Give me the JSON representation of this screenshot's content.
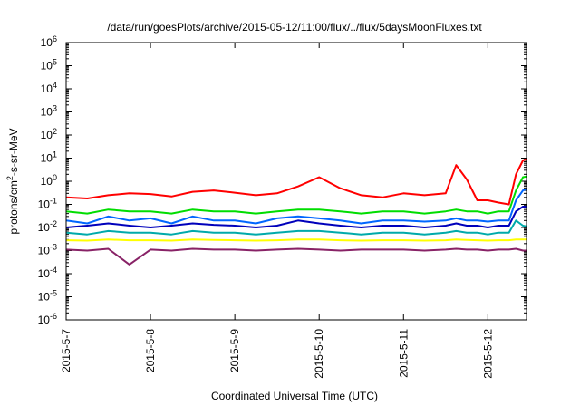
{
  "chart_data": {
    "type": "line",
    "title": "/data/run/goesPlots/archive/2015-05-12/11:00/flux/../flux/5daysMoonFluxes.txt",
    "xlabel": "Coordinated Universal Time (UTC)",
    "ylabel": {
      "base": "protons/cm",
      "exp": "2",
      "rest": "-s-sr-MeV"
    },
    "y_scale": "log",
    "ylim": [
      1e-06,
      1000000.0
    ],
    "y_ticks": [
      {
        "value": 1e-06,
        "base": "10",
        "exp": "-6"
      },
      {
        "value": 1e-05,
        "base": "10",
        "exp": "-5"
      },
      {
        "value": 0.0001,
        "base": "10",
        "exp": "-4"
      },
      {
        "value": 0.001,
        "base": "10",
        "exp": "-3"
      },
      {
        "value": 0.01,
        "base": "10",
        "exp": "-2"
      },
      {
        "value": 0.1,
        "base": "10",
        "exp": "-1"
      },
      {
        "value": 1.0,
        "base": "10",
        "exp": "0"
      },
      {
        "value": 10.0,
        "base": "10",
        "exp": "1"
      },
      {
        "value": 100.0,
        "base": "10",
        "exp": "2"
      },
      {
        "value": 1000.0,
        "base": "10",
        "exp": "3"
      },
      {
        "value": 10000.0,
        "base": "10",
        "exp": "4"
      },
      {
        "value": 100000.0,
        "base": "10",
        "exp": "5"
      },
      {
        "value": 1000000.0,
        "base": "10",
        "exp": "6"
      }
    ],
    "xlim": [
      "2015-05-07",
      "2015-05-12T11:00"
    ],
    "x_ticks": [
      {
        "value": "2015-05-07",
        "label": "2015-5-7"
      },
      {
        "value": "2015-05-08",
        "label": "2015-5-8"
      },
      {
        "value": "2015-05-09",
        "label": "2015-5-9"
      },
      {
        "value": "2015-05-10",
        "label": "2015-5-10"
      },
      {
        "value": "2015-05-11",
        "label": "2015-5-11"
      },
      {
        "value": "2015-05-12",
        "label": "2015-5-12"
      }
    ],
    "grid": false,
    "legend": "none",
    "x": [
      "2015-05-07T00:00",
      "2015-05-07T06:00",
      "2015-05-07T12:00",
      "2015-05-07T18:00",
      "2015-05-08T00:00",
      "2015-05-08T06:00",
      "2015-05-08T12:00",
      "2015-05-08T18:00",
      "2015-05-09T00:00",
      "2015-05-09T06:00",
      "2015-05-09T12:00",
      "2015-05-09T18:00",
      "2015-05-10T00:00",
      "2015-05-10T06:00",
      "2015-05-10T12:00",
      "2015-05-10T18:00",
      "2015-05-11T00:00",
      "2015-05-11T06:00",
      "2015-05-11T12:00",
      "2015-05-11T15:00",
      "2015-05-11T18:00",
      "2015-05-11T21:00",
      "2015-05-12T00:00",
      "2015-05-12T03:00",
      "2015-05-12T06:00",
      "2015-05-12T08:00",
      "2015-05-12T10:00",
      "2015-05-12T11:00"
    ],
    "series": [
      {
        "color": "#ff0000",
        "values": [
          0.2,
          0.18,
          0.25,
          0.3,
          0.28,
          0.22,
          0.35,
          0.4,
          0.32,
          0.25,
          0.3,
          0.6,
          1.5,
          0.5,
          0.25,
          0.2,
          0.3,
          0.25,
          0.3,
          5.0,
          1.2,
          0.15,
          0.15,
          0.12,
          0.1,
          2.0,
          8.0,
          9.0
        ]
      },
      {
        "color": "#00dd00",
        "values": [
          0.05,
          0.04,
          0.06,
          0.05,
          0.05,
          0.04,
          0.06,
          0.05,
          0.05,
          0.04,
          0.05,
          0.06,
          0.06,
          0.05,
          0.04,
          0.05,
          0.05,
          0.04,
          0.05,
          0.06,
          0.05,
          0.05,
          0.04,
          0.05,
          0.05,
          0.4,
          1.5,
          1.6
        ]
      },
      {
        "color": "#0066ff",
        "values": [
          0.02,
          0.015,
          0.03,
          0.02,
          0.025,
          0.015,
          0.03,
          0.02,
          0.02,
          0.015,
          0.025,
          0.03,
          0.025,
          0.02,
          0.015,
          0.02,
          0.02,
          0.018,
          0.02,
          0.025,
          0.02,
          0.02,
          0.018,
          0.02,
          0.02,
          0.15,
          0.4,
          0.45
        ]
      },
      {
        "color": "#0000bb",
        "values": [
          0.01,
          0.012,
          0.015,
          0.012,
          0.01,
          0.012,
          0.015,
          0.013,
          0.012,
          0.01,
          0.012,
          0.02,
          0.015,
          0.012,
          0.01,
          0.012,
          0.012,
          0.01,
          0.012,
          0.015,
          0.012,
          0.012,
          0.01,
          0.012,
          0.012,
          0.05,
          0.08,
          0.08
        ]
      },
      {
        "color": "#00aaaa",
        "values": [
          0.006,
          0.005,
          0.007,
          0.006,
          0.006,
          0.005,
          0.007,
          0.006,
          0.006,
          0.005,
          0.006,
          0.007,
          0.007,
          0.006,
          0.005,
          0.006,
          0.006,
          0.005,
          0.006,
          0.007,
          0.006,
          0.006,
          0.005,
          0.006,
          0.006,
          0.02,
          0.012,
          0.011
        ]
      },
      {
        "color": "#ffff00",
        "values": [
          0.0028,
          0.0027,
          0.003,
          0.0028,
          0.0028,
          0.0027,
          0.003,
          0.0029,
          0.0028,
          0.0027,
          0.0028,
          0.003,
          0.003,
          0.0028,
          0.0027,
          0.0028,
          0.0028,
          0.0027,
          0.0028,
          0.003,
          0.0029,
          0.0028,
          0.0027,
          0.0028,
          0.0028,
          0.003,
          0.003,
          0.003
        ]
      },
      {
        "color": "#882266",
        "values": [
          0.0011,
          0.001,
          0.0012,
          0.00025,
          0.0011,
          0.001,
          0.0012,
          0.0011,
          0.0011,
          0.001,
          0.0011,
          0.0012,
          0.0011,
          0.001,
          0.0011,
          0.0011,
          0.0011,
          0.001,
          0.0011,
          0.0012,
          0.0011,
          0.0011,
          0.001,
          0.0011,
          0.0011,
          0.0012,
          0.001,
          0.001
        ]
      }
    ]
  }
}
